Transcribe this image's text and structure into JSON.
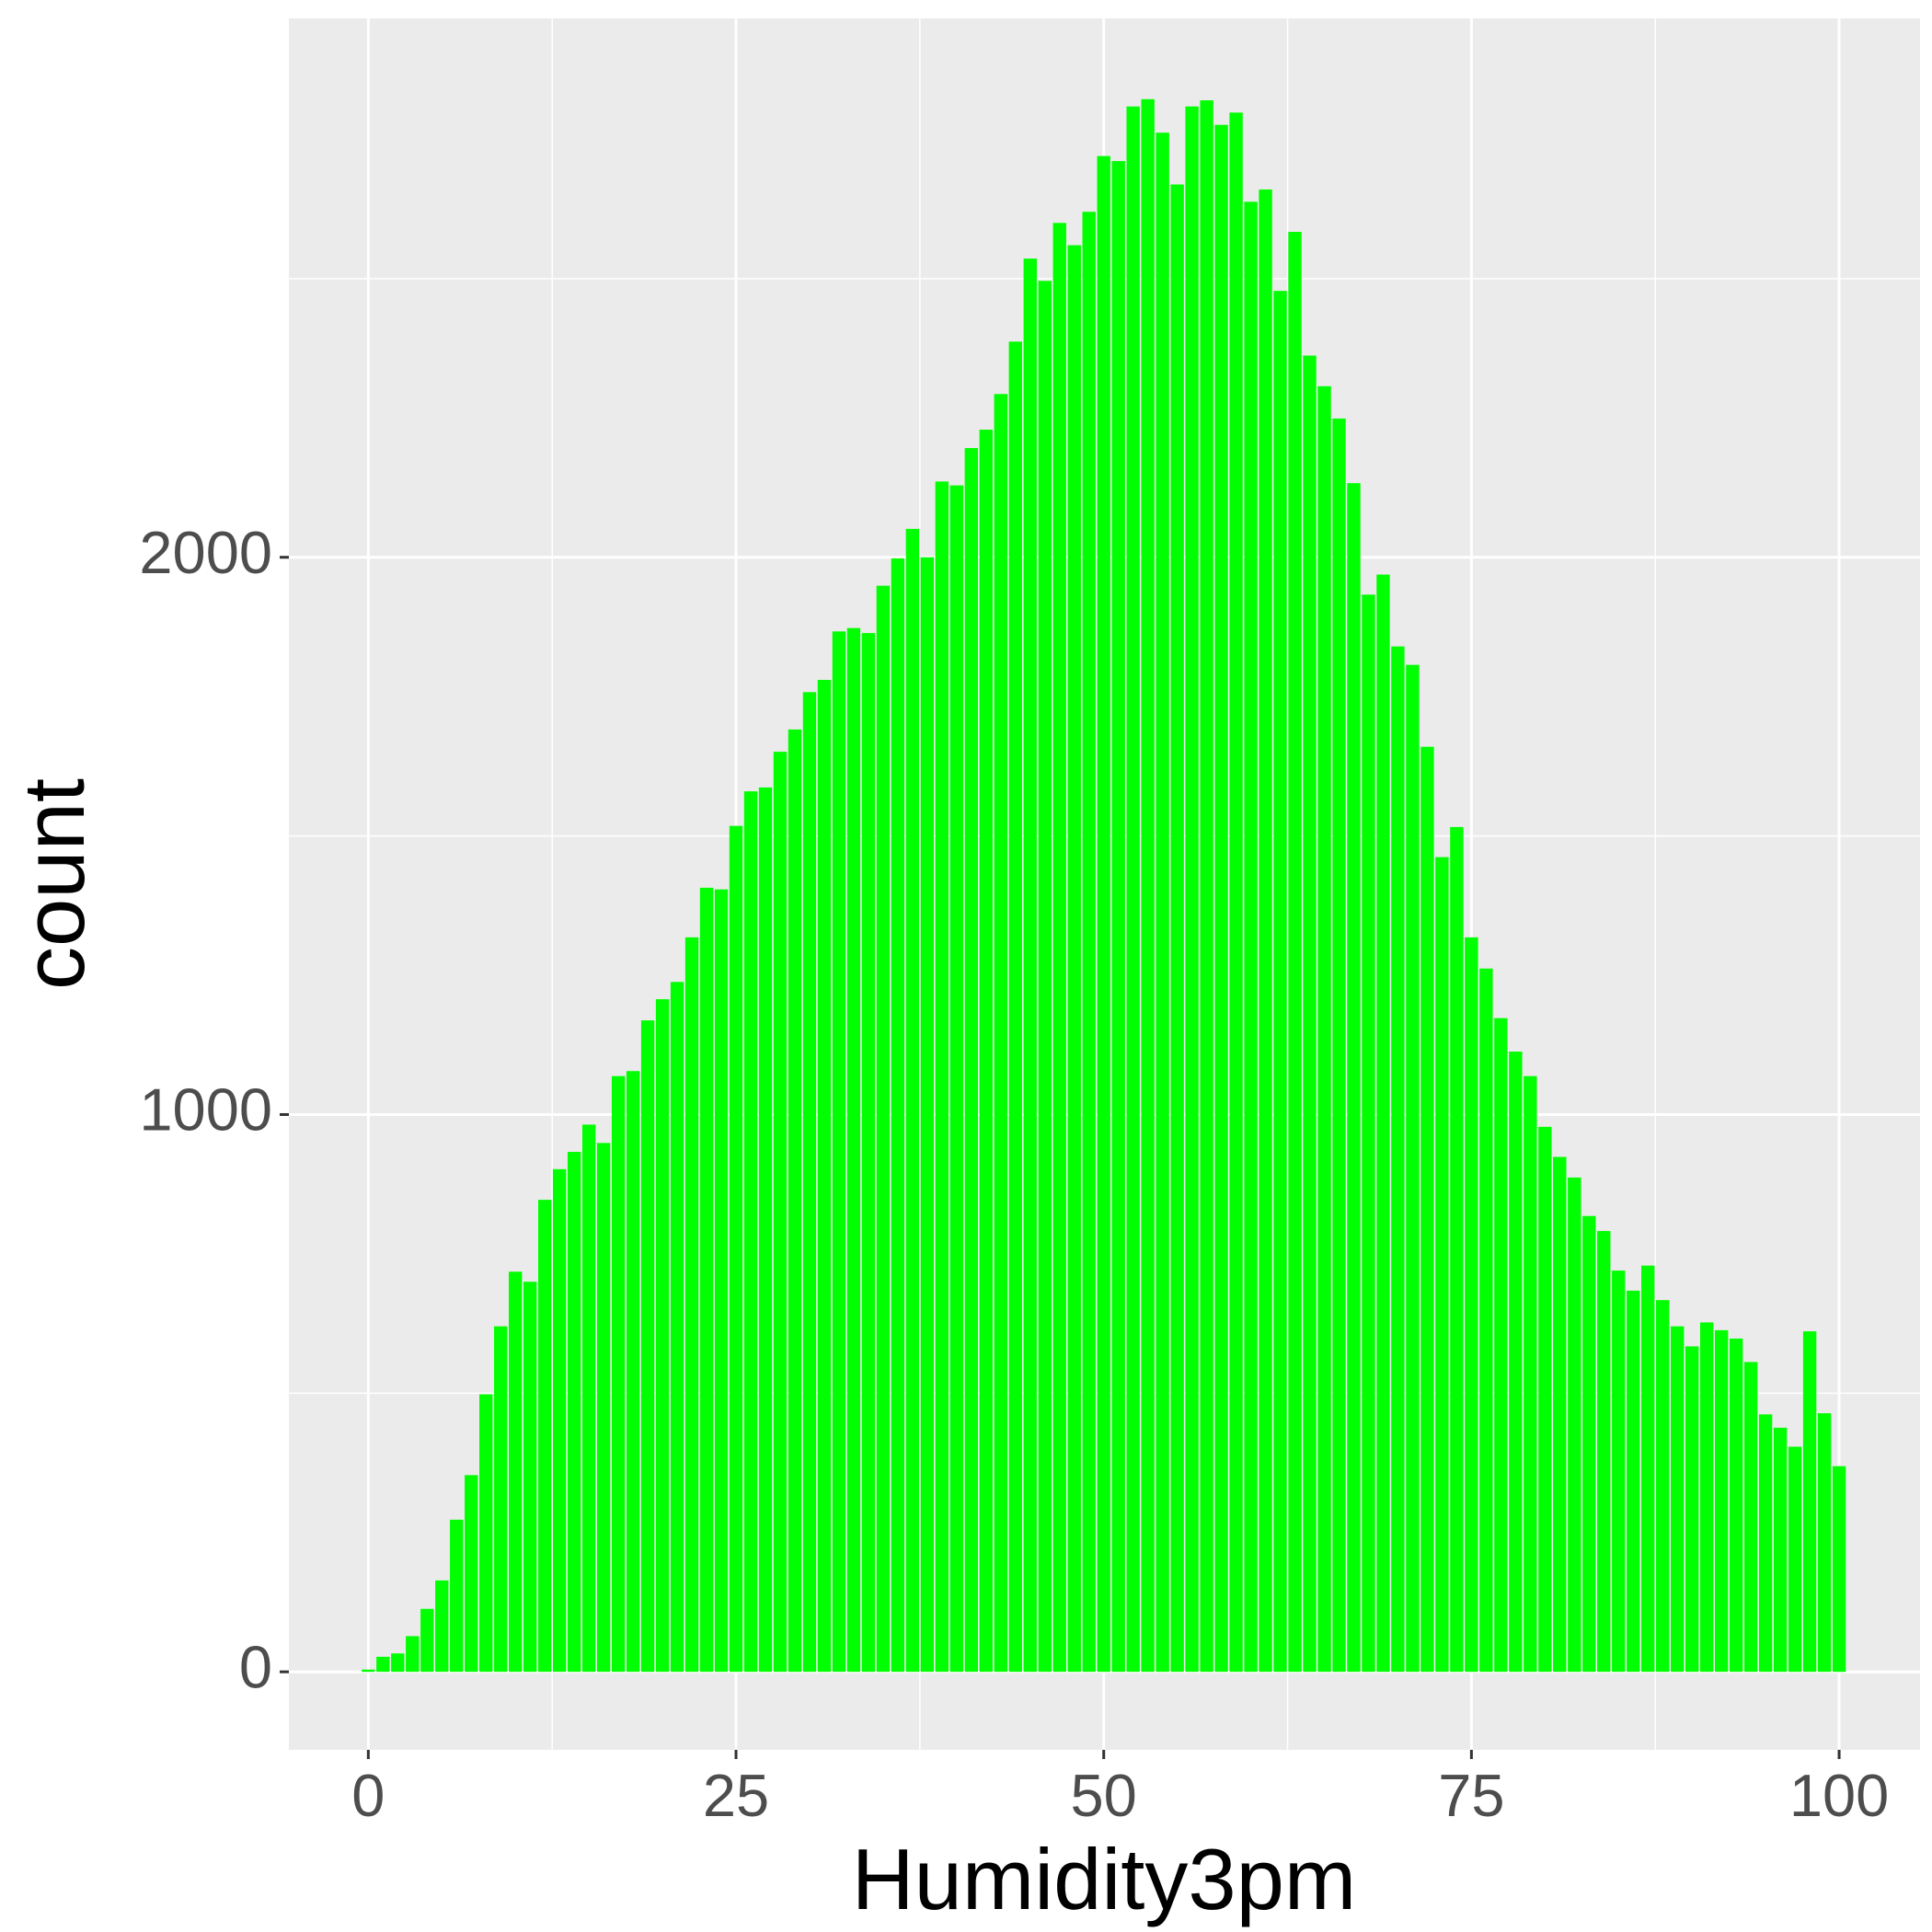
{
  "chart_data": {
    "type": "bar",
    "x_label": "Humidity3pm",
    "y_label": "count",
    "color": "#00FF00",
    "grid": true,
    "x": [
      0,
      1,
      2,
      3,
      4,
      5,
      6,
      7,
      8,
      9,
      10,
      11,
      12,
      13,
      14,
      15,
      16,
      17,
      18,
      19,
      20,
      21,
      22,
      23,
      24,
      25,
      26,
      27,
      28,
      29,
      30,
      31,
      32,
      33,
      34,
      35,
      36,
      37,
      38,
      39,
      40,
      41,
      42,
      43,
      44,
      45,
      46,
      47,
      48,
      49,
      50,
      51,
      52,
      53,
      54,
      55,
      56,
      57,
      58,
      59,
      60,
      61,
      62,
      63,
      64,
      65,
      66,
      67,
      68,
      69,
      70,
      71,
      72,
      73,
      74,
      75,
      76,
      77,
      78,
      79,
      80,
      81,
      82,
      83,
      84,
      85,
      86,
      87,
      88,
      89,
      90,
      91,
      92,
      93,
      94,
      95,
      96,
      97,
      98,
      99,
      100
    ],
    "values": [
      4,
      27,
      33,
      64,
      113,
      164,
      273,
      353,
      498,
      620,
      718,
      700,
      847,
      902,
      933,
      982,
      949,
      1069,
      1078,
      1169,
      1207,
      1238,
      1318,
      1407,
      1404,
      1518,
      1580,
      1587,
      1651,
      1691,
      1758,
      1780,
      1867,
      1873,
      1864,
      1949,
      1998,
      2051,
      2000,
      2136,
      2129,
      2196,
      2229,
      2293,
      2387,
      2536,
      2496,
      2600,
      2560,
      2620,
      2720,
      2711,
      2809,
      2822,
      2762,
      2669,
      2809,
      2820,
      2776,
      2798,
      2638,
      2660,
      2478,
      2584,
      2362,
      2307,
      2249,
      2133,
      1933,
      1969,
      1840,
      1807,
      1660,
      1462,
      1516,
      1318,
      1262,
      1173,
      1113,
      1069,
      978,
      924,
      887,
      818,
      791,
      720,
      684,
      729,
      667,
      620,
      584,
      627,
      613,
      598,
      556,
      462,
      438,
      404,
      611,
      464,
      369
    ],
    "xlim": [
      -5.4,
      105.5
    ],
    "ylim": [
      -140,
      2967
    ],
    "xticks": [
      0,
      25,
      50,
      75,
      100
    ],
    "yticks": [
      0,
      1000,
      2000
    ]
  }
}
